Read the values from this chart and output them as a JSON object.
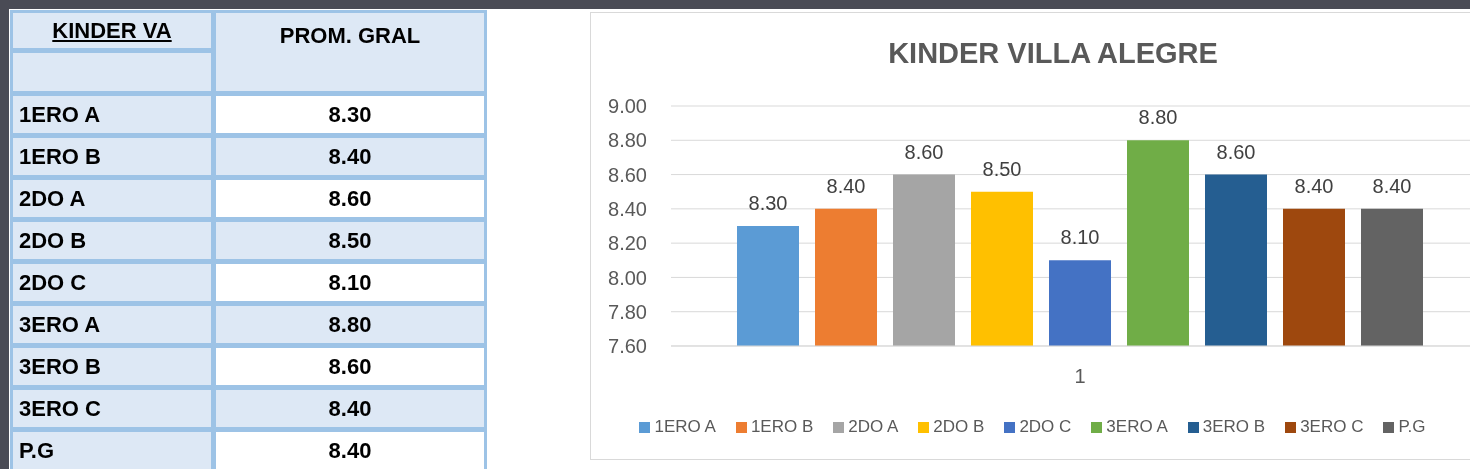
{
  "chart_data": {
    "type": "bar",
    "title": "KINDER VILLA ALEGRE",
    "categories": [
      "1"
    ],
    "series": [
      {
        "name": "1ERO A",
        "color": "#5b9bd5",
        "values": [
          8.3
        ],
        "value_labels": [
          "8.30"
        ]
      },
      {
        "name": "1ERO B",
        "color": "#ed7d31",
        "values": [
          8.4
        ],
        "value_labels": [
          "8.40"
        ]
      },
      {
        "name": "2DO A",
        "color": "#a5a5a5",
        "values": [
          8.6
        ],
        "value_labels": [
          "8.60"
        ]
      },
      {
        "name": "2DO B",
        "color": "#ffc000",
        "values": [
          8.5
        ],
        "value_labels": [
          "8.50"
        ]
      },
      {
        "name": "2DO C",
        "color": "#4472c4",
        "values": [
          8.1
        ],
        "value_labels": [
          "8.10"
        ]
      },
      {
        "name": "3ERO A",
        "color": "#70ad47",
        "values": [
          8.8
        ],
        "value_labels": [
          "8.80"
        ]
      },
      {
        "name": "3ERO B",
        "color": "#255e91",
        "values": [
          8.6
        ],
        "value_labels": [
          "8.60"
        ]
      },
      {
        "name": "3ERO C",
        "color": "#9e480e",
        "values": [
          8.4
        ],
        "value_labels": [
          "8.40"
        ]
      },
      {
        "name": "P.G",
        "color": "#636363",
        "values": [
          8.4
        ],
        "value_labels": [
          "8.40"
        ]
      }
    ],
    "ylim": [
      7.6,
      9.0
    ],
    "yticks": [
      {
        "value": 7.6,
        "label": "7.60"
      },
      {
        "value": 7.8,
        "label": "7.80"
      },
      {
        "value": 8.0,
        "label": "8.00"
      },
      {
        "value": 8.2,
        "label": "8.20"
      },
      {
        "value": 8.4,
        "label": "8.40"
      },
      {
        "value": 8.6,
        "label": "8.60"
      },
      {
        "value": 8.8,
        "label": "8.80"
      },
      {
        "value": 9.0,
        "label": "9.00"
      }
    ],
    "grid": "y",
    "legend": "bottom",
    "annotations": [
      "KINDER VA",
      "PROM. GRAL"
    ]
  }
}
